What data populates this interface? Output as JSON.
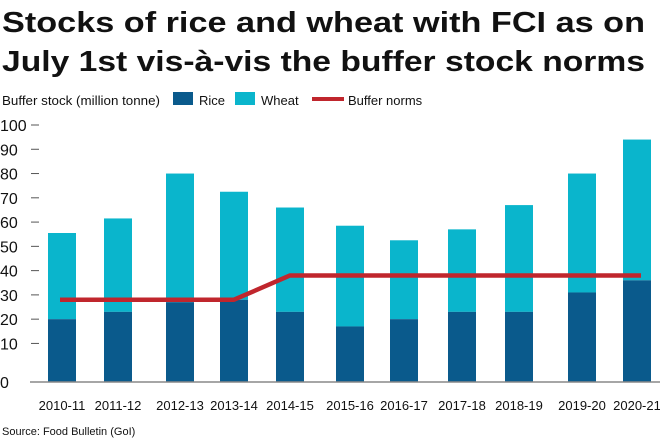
{
  "chart_data": {
    "type": "bar",
    "stacked": true,
    "title_lines": [
      "Stocks of rice and wheat with FCI as on",
      "July 1st vis-à-vis the buffer stock norms"
    ],
    "ylabel": "Buffer stock (million tonne)",
    "ylim": [
      0,
      100
    ],
    "yticks": [
      "0",
      "10",
      "20",
      "30",
      "40",
      "50",
      "60",
      "70",
      "80",
      "90",
      "100"
    ],
    "categories": [
      "2010-11",
      "2011-12",
      "2012-13",
      "2013-14",
      "2014-15",
      "2015-16",
      "2016-17",
      "2017-18",
      "2018-19",
      "2019-20",
      "2020-21"
    ],
    "series": [
      {
        "name": "Rice",
        "color": "#0a5a8c",
        "values": [
          20,
          23,
          27,
          28,
          23,
          17,
          20,
          23,
          23,
          31,
          36
        ]
      },
      {
        "name": "Wheat",
        "color": "#0ab5cc",
        "values": [
          35.5,
          38.5,
          53,
          44.5,
          43,
          41.5,
          32.5,
          34,
          44,
          49,
          58
        ]
      },
      {
        "name": "Buffer norms",
        "type": "line",
        "color": "#c0262d",
        "values": [
          28,
          28,
          28,
          28,
          38,
          38,
          38,
          38,
          38,
          38,
          38
        ]
      }
    ],
    "totals": [
      55.5,
      61.5,
      80,
      72.5,
      66,
      58.5,
      52.5,
      57,
      67,
      80,
      94
    ],
    "legend_position": "top-left",
    "grid": false,
    "source": "Source: Food Bulletin (GoI)"
  }
}
